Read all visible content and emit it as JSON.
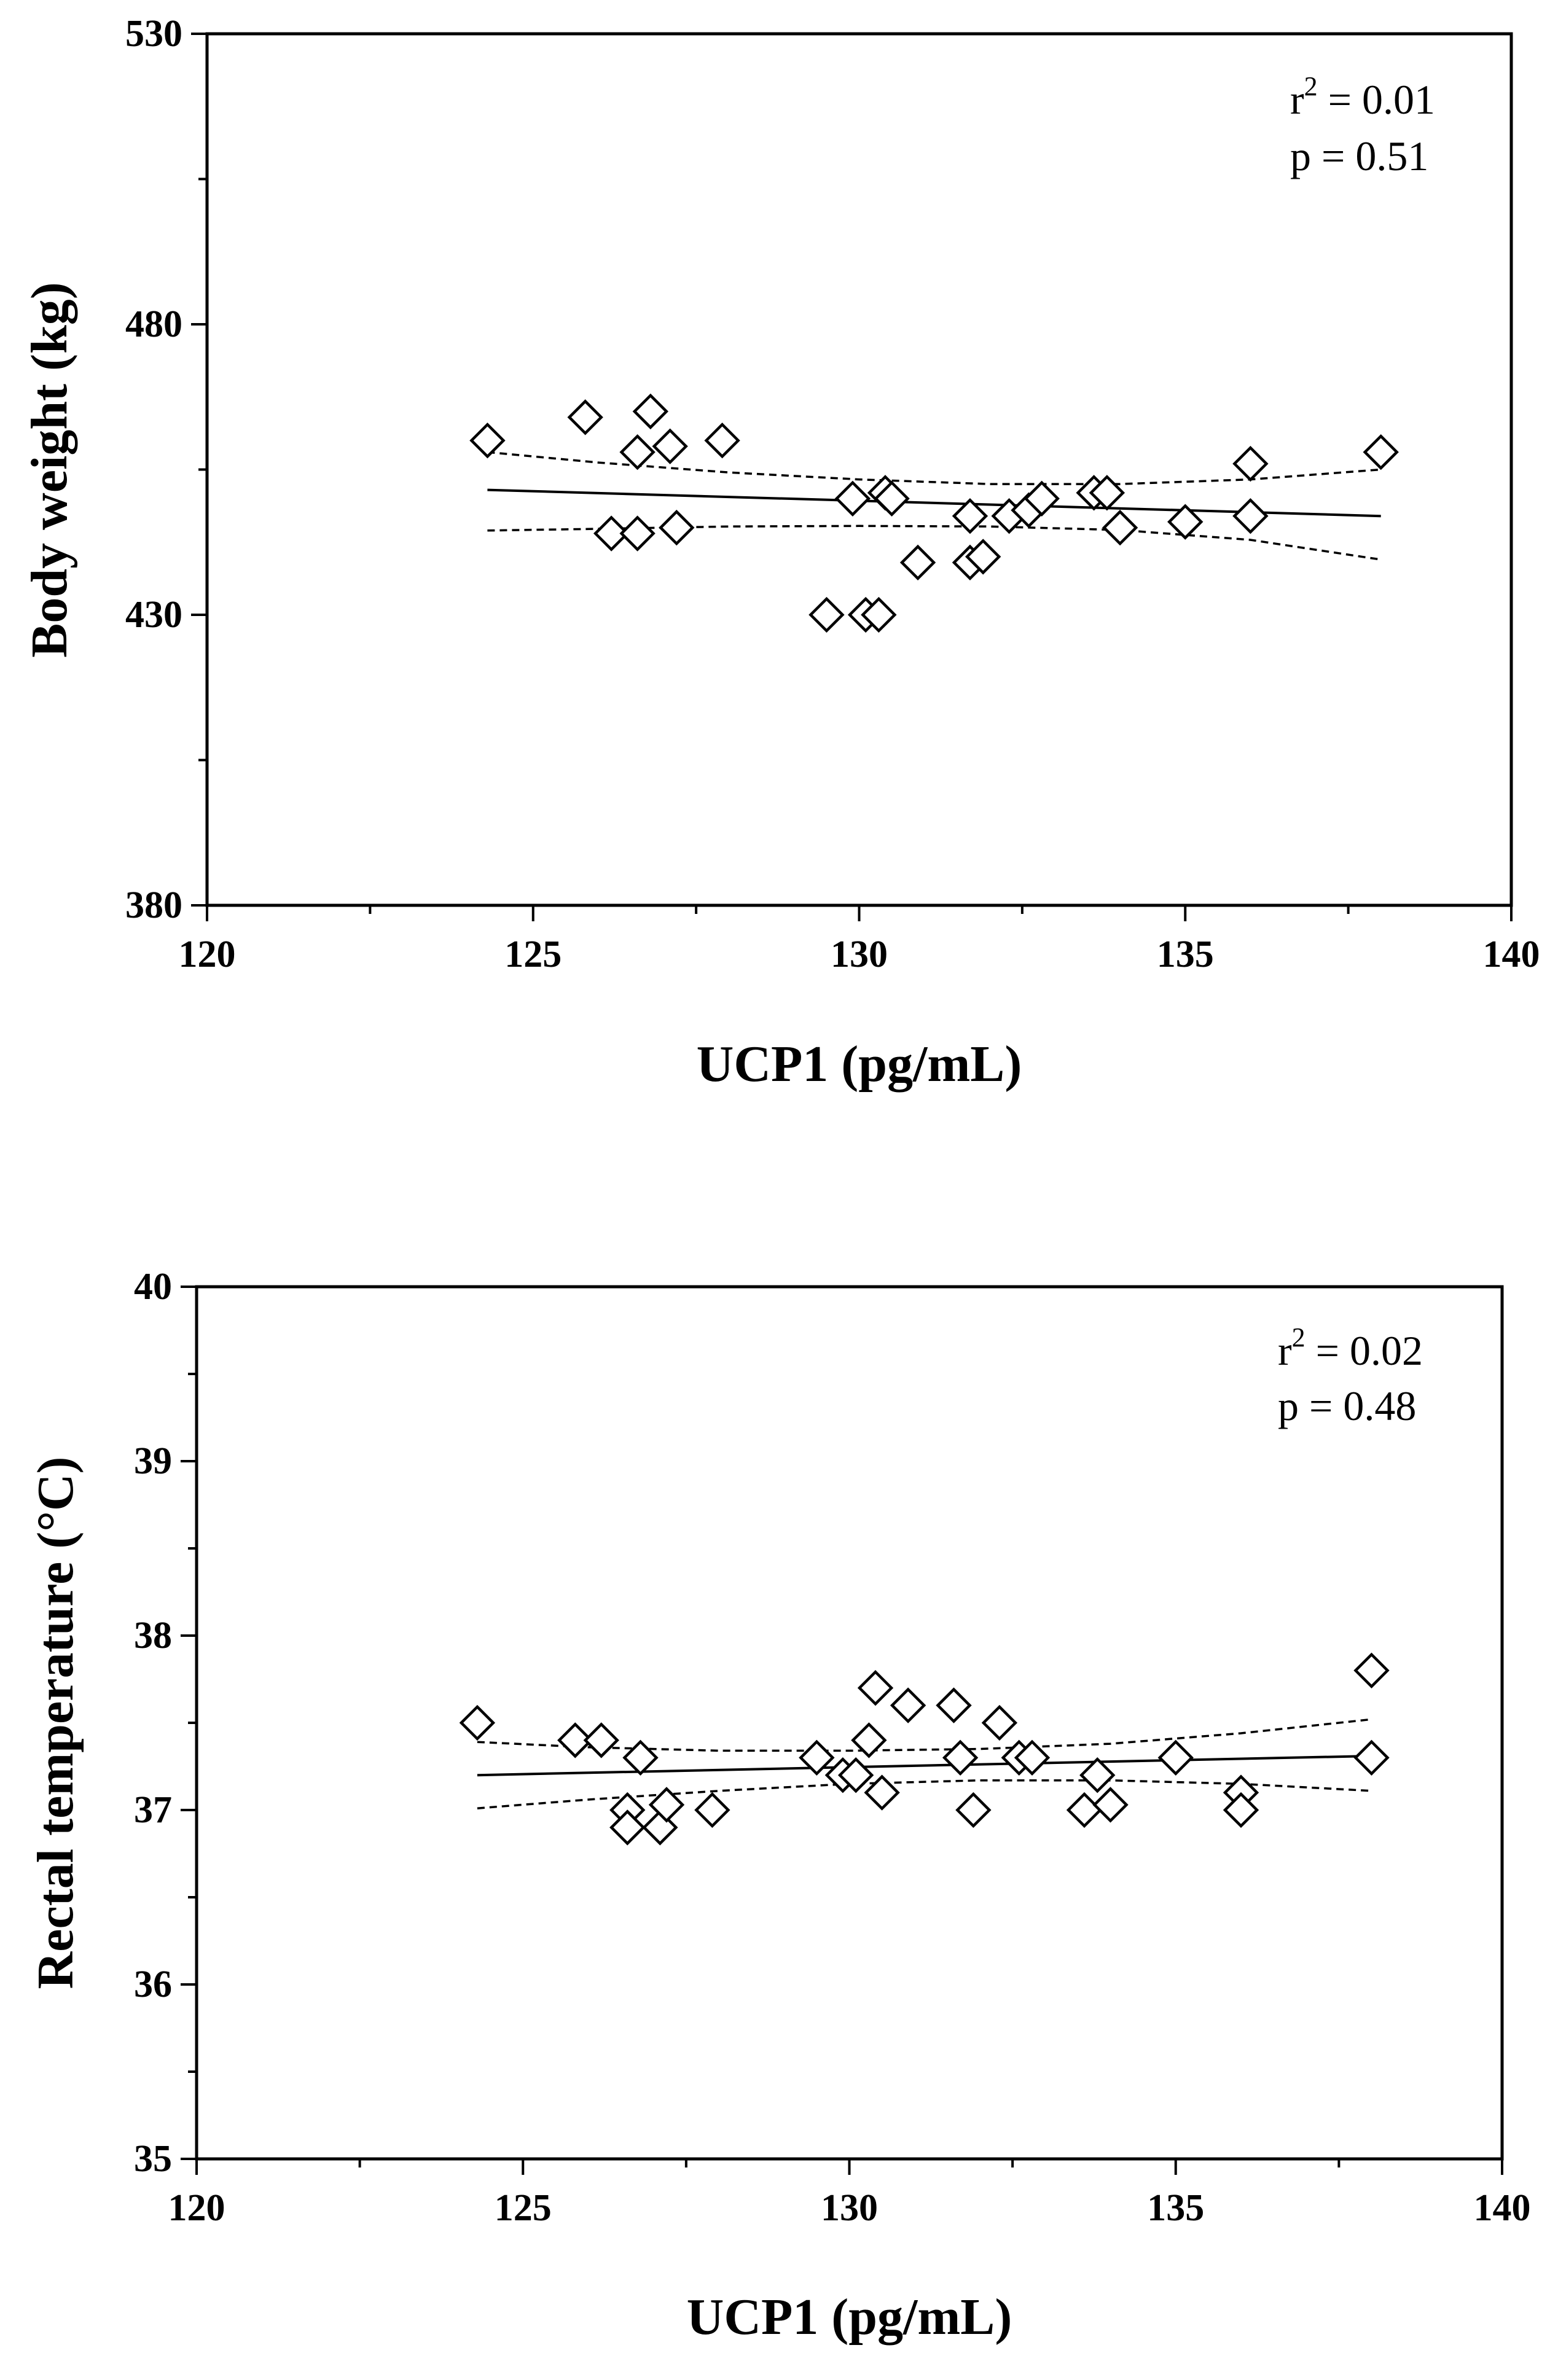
{
  "chart_data": [
    {
      "type": "scatter",
      "title": "",
      "xlabel": "UCP1 (pg/mL)",
      "ylabel": "Body weight (kg)",
      "xlim": [
        120,
        140
      ],
      "ylim": [
        380,
        530
      ],
      "xticks": [
        "120",
        "125",
        "130",
        "135",
        "140"
      ],
      "yticks": [
        "380",
        "430",
        "480",
        "530"
      ],
      "annotation": {
        "r2_label": "r",
        "r2_sup": "2",
        "r2_value": " = 0.01",
        "p_text": "p = 0.51"
      },
      "points": [
        {
          "x": 124.3,
          "y": 460
        },
        {
          "x": 125.8,
          "y": 464
        },
        {
          "x": 126.6,
          "y": 458
        },
        {
          "x": 126.8,
          "y": 465
        },
        {
          "x": 127.1,
          "y": 459
        },
        {
          "x": 127.9,
          "y": 460
        },
        {
          "x": 126.2,
          "y": 444
        },
        {
          "x": 126.6,
          "y": 444
        },
        {
          "x": 127.2,
          "y": 445
        },
        {
          "x": 129.9,
          "y": 450
        },
        {
          "x": 130.4,
          "y": 451
        },
        {
          "x": 130.5,
          "y": 450
        },
        {
          "x": 129.5,
          "y": 430
        },
        {
          "x": 130.1,
          "y": 430
        },
        {
          "x": 130.3,
          "y": 430
        },
        {
          "x": 130.9,
          "y": 439
        },
        {
          "x": 131.7,
          "y": 439
        },
        {
          "x": 131.9,
          "y": 440
        },
        {
          "x": 131.7,
          "y": 447
        },
        {
          "x": 132.3,
          "y": 447
        },
        {
          "x": 132.6,
          "y": 448
        },
        {
          "x": 132.8,
          "y": 450
        },
        {
          "x": 133.6,
          "y": 451
        },
        {
          "x": 133.8,
          "y": 451
        },
        {
          "x": 134.0,
          "y": 445
        },
        {
          "x": 135.0,
          "y": 446
        },
        {
          "x": 136.0,
          "y": 447
        },
        {
          "x": 136.0,
          "y": 456
        },
        {
          "x": 138.0,
          "y": 458
        }
      ],
      "fit": {
        "x": [
          124.3,
          138.0
        ],
        "y": [
          451.5,
          447.0
        ]
      },
      "ci_upper": {
        "x": [
          124.3,
          126,
          128,
          130,
          132,
          134,
          136,
          138
        ],
        "y": [
          458.0,
          456.2,
          454.5,
          453.3,
          452.5,
          452.5,
          453.3,
          455.0
        ]
      },
      "ci_lower": {
        "x": [
          124.3,
          126,
          128,
          130,
          132,
          134,
          136,
          138
        ],
        "y": [
          444.5,
          444.8,
          445.2,
          445.3,
          445.2,
          444.6,
          442.9,
          439.5
        ]
      }
    },
    {
      "type": "scatter",
      "title": "",
      "xlabel": "UCP1 (pg/mL)",
      "ylabel": "Rectal temperature (°C)",
      "xlim": [
        120,
        140
      ],
      "ylim": [
        35,
        40
      ],
      "xticks": [
        "120",
        "125",
        "130",
        "135",
        "140"
      ],
      "yticks": [
        "35",
        "36",
        "37",
        "38",
        "39",
        "40"
      ],
      "annotation": {
        "r2_label": "r",
        "r2_sup": "2",
        "r2_value": " = 0.02",
        "p_text": "p = 0.48"
      },
      "points": [
        {
          "x": 124.3,
          "y": 37.5
        },
        {
          "x": 125.8,
          "y": 37.4
        },
        {
          "x": 126.2,
          "y": 37.4
        },
        {
          "x": 126.8,
          "y": 37.3
        },
        {
          "x": 126.6,
          "y": 37.0
        },
        {
          "x": 126.6,
          "y": 36.9
        },
        {
          "x": 127.1,
          "y": 36.9
        },
        {
          "x": 127.2,
          "y": 37.03
        },
        {
          "x": 127.9,
          "y": 37.0
        },
        {
          "x": 129.5,
          "y": 37.3
        },
        {
          "x": 129.9,
          "y": 37.2
        },
        {
          "x": 130.1,
          "y": 37.2
        },
        {
          "x": 130.3,
          "y": 37.4
        },
        {
          "x": 130.4,
          "y": 37.7
        },
        {
          "x": 130.5,
          "y": 37.1
        },
        {
          "x": 130.9,
          "y": 37.6
        },
        {
          "x": 131.6,
          "y": 37.6
        },
        {
          "x": 131.7,
          "y": 37.3
        },
        {
          "x": 131.9,
          "y": 37.0
        },
        {
          "x": 132.3,
          "y": 37.5
        },
        {
          "x": 132.6,
          "y": 37.3
        },
        {
          "x": 132.8,
          "y": 37.3
        },
        {
          "x": 133.6,
          "y": 37.0
        },
        {
          "x": 133.8,
          "y": 37.2
        },
        {
          "x": 134.0,
          "y": 37.03
        },
        {
          "x": 135.0,
          "y": 37.3
        },
        {
          "x": 136.0,
          "y": 37.1
        },
        {
          "x": 136.0,
          "y": 37.0
        },
        {
          "x": 138.0,
          "y": 37.8
        },
        {
          "x": 138.0,
          "y": 37.3
        }
      ],
      "fit": {
        "x": [
          124.3,
          138.0
        ],
        "y": [
          37.2,
          37.31
        ]
      },
      "ci_upper": {
        "x": [
          124.3,
          126,
          128,
          130,
          132,
          134,
          136,
          138
        ],
        "y": [
          37.39,
          37.36,
          37.34,
          37.34,
          37.35,
          37.38,
          37.44,
          37.52
        ]
      },
      "ci_lower": {
        "x": [
          124.3,
          126,
          128,
          130,
          132,
          134,
          136,
          138
        ],
        "y": [
          37.01,
          37.06,
          37.11,
          37.15,
          37.17,
          37.17,
          37.15,
          37.11
        ]
      }
    }
  ]
}
